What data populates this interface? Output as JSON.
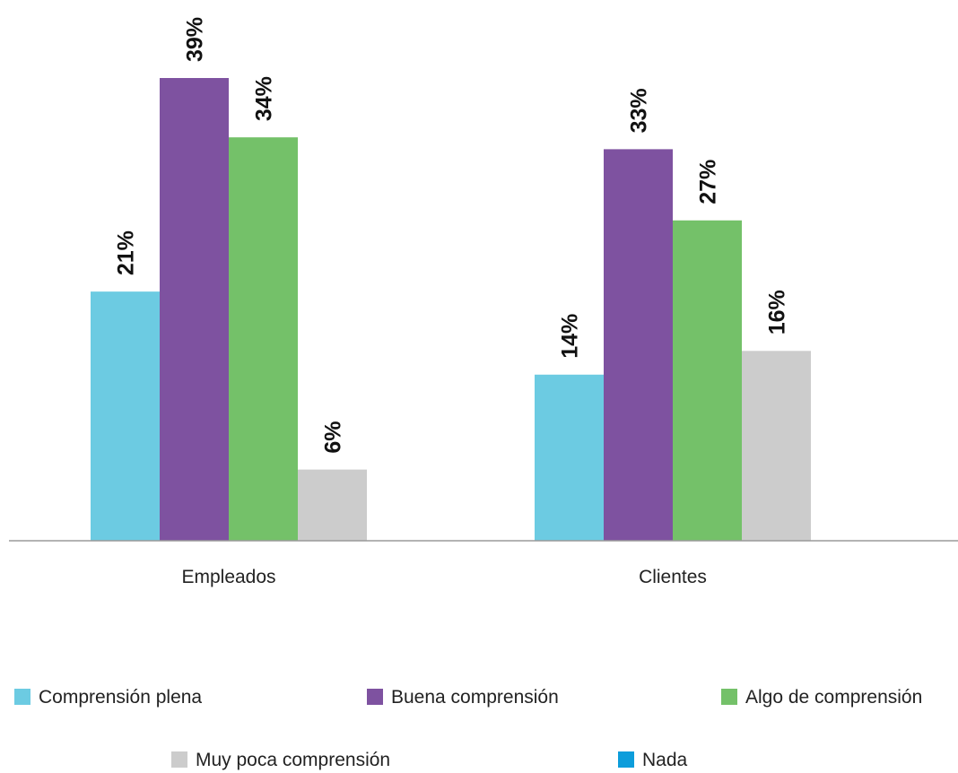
{
  "chart_data": {
    "type": "bar",
    "categories": [
      "Empleados",
      "Clientes"
    ],
    "series": [
      {
        "name": "Comprensión plena",
        "color": "#6ccbe2",
        "values": [
          21,
          14
        ],
        "labels": [
          "21%",
          "14%"
        ]
      },
      {
        "name": "Buena comprensión",
        "color": "#7e52a0",
        "values": [
          39,
          33
        ],
        "labels": [
          "39%",
          "33%"
        ]
      },
      {
        "name": "Algo de comprensión",
        "color": "#74c169",
        "values": [
          34,
          27
        ],
        "labels": [
          "34%",
          "27%"
        ]
      },
      {
        "name": "Muy poca comprensión",
        "color": "#cccccc",
        "values": [
          6,
          16
        ],
        "labels": [
          "6%",
          "16%"
        ]
      },
      {
        "name": "Nada",
        "color": "#0d9ddb",
        "values": [
          null,
          null
        ],
        "labels": [
          "",
          ""
        ]
      }
    ],
    "legend_position": "bottom",
    "grid": false
  }
}
